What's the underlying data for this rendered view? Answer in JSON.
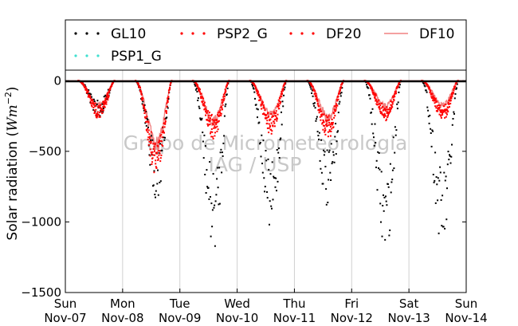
{
  "chart_data": {
    "type": "scatter",
    "title": "",
    "ylabel_text": "Solar radiation (",
    "ylabel_units": "Wm",
    "ylabel_exp": "−2",
    "ylabel_close": ")",
    "xlabel": "",
    "watermark": [
      "Grupo de Micrometeorologia",
      "IAG / USP"
    ],
    "ylim": [
      -1500,
      75
    ],
    "xlim": [
      0,
      7
    ],
    "y_ticks": [
      {
        "value": 0,
        "label": "0"
      },
      {
        "value": -500,
        "label": "−500"
      },
      {
        "value": -1000,
        "label": "−1000"
      },
      {
        "value": -1500,
        "label": "−1500"
      }
    ],
    "x_ticks": [
      {
        "value": 0,
        "day": "Sun",
        "date": "Nov-07"
      },
      {
        "value": 1,
        "day": "Mon",
        "date": "Nov-08"
      },
      {
        "value": 2,
        "day": "Tue",
        "date": "Nov-09"
      },
      {
        "value": 3,
        "day": "Wed",
        "date": "Nov-10"
      },
      {
        "value": 4,
        "day": "Thu",
        "date": "Nov-11"
      },
      {
        "value": 5,
        "day": "Fri",
        "date": "Nov-12"
      },
      {
        "value": 6,
        "day": "Sat",
        "date": "Nov-13"
      },
      {
        "value": 7,
        "day": "Sun",
        "date": "Nov-14"
      }
    ],
    "grid": "vertical",
    "legend_position": "top",
    "series": [
      {
        "name": "GL10",
        "style": "dots",
        "color": "#000000",
        "peaks": [
          -250,
          -800,
          -1150,
          -1050,
          -880,
          -1190,
          -1150
        ]
      },
      {
        "name": "PSP2_G",
        "style": "dots",
        "color": "#ff0000",
        "peaks": [
          -260,
          -650,
          -400,
          -360,
          -400,
          -270,
          -270
        ]
      },
      {
        "name": "DF20",
        "style": "dots",
        "color": "#ff0000",
        "peaks": [
          -240,
          -600,
          -350,
          -330,
          -350,
          -250,
          -250
        ]
      },
      {
        "name": "DF10",
        "style": "line",
        "color": "#f08080",
        "peaks": [
          -200,
          -520,
          -330,
          -280,
          -300,
          -210,
          -200
        ]
      },
      {
        "name": "PSP1_G",
        "style": "dots",
        "color": "#40e0d0",
        "peaks": [
          0,
          0,
          0,
          0,
          0,
          0,
          0
        ]
      }
    ]
  }
}
